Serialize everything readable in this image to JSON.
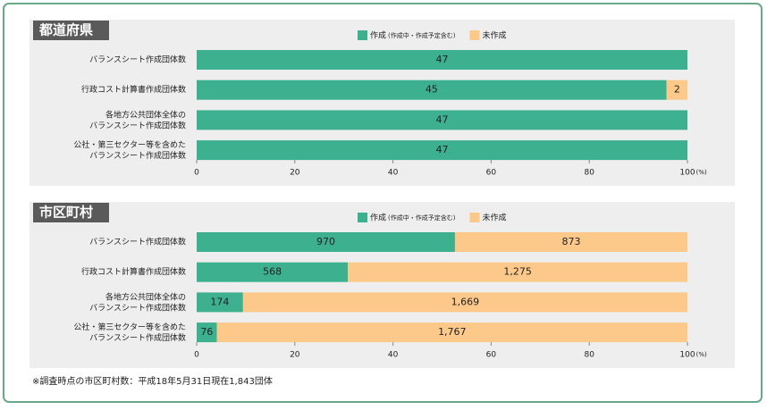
{
  "chart_data": [
    {
      "type": "bar_stacked_percent",
      "title": "都道府県",
      "categories": [
        "バランスシート作成団体数",
        "行政コスト計算書作成団体数",
        "各地方公共団体全体の\nバランスシート作成団体数",
        "公社・第三セクター等を含めた\nバランスシート作成団体数"
      ],
      "series": [
        {
          "name": "作成",
          "note": "(作成中・作成予定含む)",
          "color": "#3db08f",
          "values": [
            47,
            45,
            47,
            47
          ]
        },
        {
          "name": "未作成",
          "color": "#fdc98b",
          "values": [
            0,
            2,
            0,
            0
          ]
        }
      ],
      "xlim": [
        0,
        100
      ],
      "xticks": [
        0,
        20,
        40,
        60,
        80,
        100
      ],
      "x_unit": "(%)"
    },
    {
      "type": "bar_stacked_percent",
      "title": "市区町村",
      "categories": [
        "バランスシート作成団体数",
        "行政コスト計算書作成団体数",
        "各地方公共団体全体の\nバランスシート作成団体数",
        "公社・第三セクター等を含めた\nバランスシート作成団体数"
      ],
      "series": [
        {
          "name": "作成",
          "note": "(作成中・作成予定含む)",
          "color": "#3db08f",
          "values": [
            970,
            568,
            174,
            76
          ]
        },
        {
          "name": "未作成",
          "color": "#fdc98b",
          "values": [
            873,
            1275,
            1669,
            1767
          ],
          "value_labels": [
            "873",
            "1,275",
            "1,669",
            "1,767"
          ]
        }
      ],
      "xlim": [
        0,
        100
      ],
      "xticks": [
        0,
        20,
        40,
        60,
        80,
        100
      ],
      "x_unit": "(%)"
    }
  ],
  "footnote": "※調査時点の市区町村数：平成18年5月31日現在1,843団体"
}
